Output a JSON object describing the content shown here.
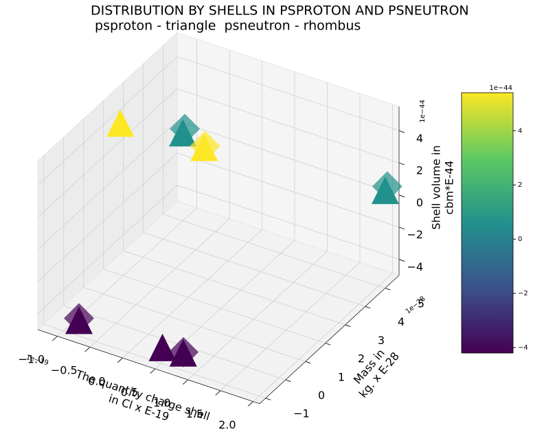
{
  "chart_data": {
    "type": "scatter3d",
    "title": "DISTRIBUTION BY SHELLS IN PSPROTON AND PSNEUTRON",
    "subtitle": " psproton - triangle  psneutron - rhombus",
    "xlabel": [
      "The quantity charge shell",
      "in Cl x E-19"
    ],
    "ylabel": [
      "Mass in",
      "kg. x E-28"
    ],
    "zlabel": [
      "Shell volume in",
      "cbm*E-44"
    ],
    "x_offset_text": "1e−19",
    "y_offset_text": "1e−28",
    "z_offset_text": "1e−44",
    "xlim": [
      -1.3,
      2.1
    ],
    "ylim": [
      -1.3,
      5.7
    ],
    "zlim": [
      -5,
      5.5
    ],
    "xticks": [
      {
        "value": -1,
        "label": "−1.0"
      },
      {
        "value": -0.5,
        "label": "−0.5"
      },
      {
        "value": 0,
        "label": "0.0"
      },
      0.5,
      {
        "value": 1,
        "label": "1.0"
      },
      1.5,
      {
        "value": 2,
        "label": "2.0"
      }
    ],
    "yticks": [
      {
        "value": -1,
        "label": "−1"
      },
      0,
      1,
      2,
      3,
      4,
      5
    ],
    "zticks": [
      {
        "value": -4,
        "label": "−4"
      },
      {
        "value": -2,
        "label": "−2"
      },
      0,
      2,
      4
    ],
    "grid": true,
    "series": [
      {
        "marker": "triangle",
        "x": [
          -0.84,
          -1.0,
          0.38,
          1.98,
          -0.76,
          0.51,
          0.81
        ],
        "y": [
          1.34,
          5.0,
          1.55,
          5.4,
          -1.0,
          -0.97,
          -0.91
        ],
        "z": [
          5.3,
          0.3,
          5.2,
          0.3,
          -4.2,
          -4.2,
          -4.2
        ],
        "colors": [
          "#fde725",
          "#21918c",
          "#fde725",
          "#21918c",
          "#440154",
          "#440154",
          "#440154"
        ]
      },
      {
        "marker": "rhombus",
        "x": [
          -1.0,
          0.38,
          1.98,
          -0.76,
          0.81
        ],
        "y": [
          5.1,
          1.6,
          5.5,
          -1.0,
          -0.9
        ],
        "z": [
          0.6,
          5.4,
          0.6,
          -3.9,
          -4.0
        ],
        "colors": [
          "#21918c",
          "#fde725",
          "#21918c",
          "#440154",
          "#440154"
        ]
      }
    ],
    "colorbar": {
      "colormap": [
        "#440154",
        "#3b528b",
        "#21918c",
        "#5ec962",
        "#fde725"
      ],
      "clim": [
        -4.2,
        5.4
      ],
      "ticks": [
        {
          "value": -4,
          "label": "−4"
        },
        {
          "value": -2,
          "label": "−2"
        },
        0,
        2,
        4
      ],
      "offset_text": "1e−44"
    }
  }
}
